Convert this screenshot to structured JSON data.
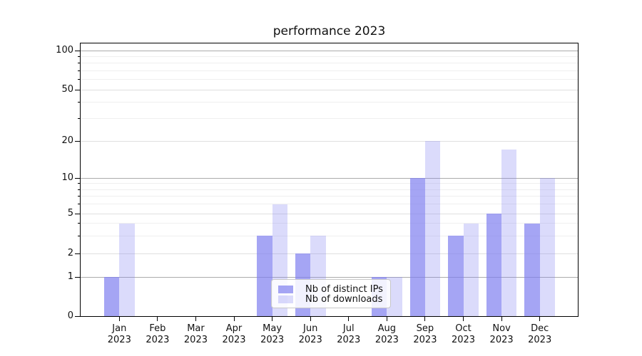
{
  "title": "performance 2023",
  "colors": {
    "bar_base": "#7f7ff0",
    "ips_bar": "rgba(127,127,240,0.70)",
    "downloads_bar": "rgba(127,127,240,0.28)",
    "major_gridline": "#ababab",
    "labeled_gridline": "#dfdfdf",
    "minor_gridline": "#efefef",
    "spine": "#000000",
    "background": "#ffffff",
    "legend_border": "#c8c8c8"
  },
  "legend": {
    "items": [
      {
        "label": "Nb of distinct IPs",
        "series": "ips"
      },
      {
        "label": "Nb of downloads",
        "series": "downloads"
      }
    ],
    "position": "lower center"
  },
  "chart_data": {
    "type": "bar",
    "title": "performance 2023",
    "categories": [
      "Jan 2023",
      "Feb 2023",
      "Mar 2023",
      "Apr 2023",
      "May 2023",
      "Jun 2023",
      "Jul 2023",
      "Aug 2023",
      "Sep 2023",
      "Oct 2023",
      "Nov 2023",
      "Dec 2023"
    ],
    "x_month_labels": [
      "Jan",
      "Feb",
      "Mar",
      "Apr",
      "May",
      "Jun",
      "Jul",
      "Aug",
      "Sep",
      "Oct",
      "Nov",
      "Dec"
    ],
    "x_year": "2023",
    "series": [
      {
        "name": "Nb of distinct IPs",
        "values": [
          1,
          0,
          0,
          0,
          3,
          2,
          0,
          1,
          10,
          3,
          5,
          4
        ]
      },
      {
        "name": "Nb of downloads",
        "values": [
          4,
          0,
          0,
          0,
          6,
          3,
          0,
          1,
          20,
          4,
          17,
          10
        ]
      }
    ],
    "xlabel": "",
    "ylabel": "",
    "yscale": "log-like",
    "y_ticks_labeled": [
      0,
      1,
      2,
      5,
      10,
      20,
      50,
      100
    ],
    "y_ticks_major": [
      1,
      10,
      100
    ],
    "y_ticks_minor_unlabeled": [
      3,
      4,
      6,
      7,
      8,
      9,
      30,
      40,
      60,
      70,
      80,
      90
    ],
    "ylim": [
      0,
      113
    ],
    "grid": "both",
    "legend_position": "lower center"
  }
}
